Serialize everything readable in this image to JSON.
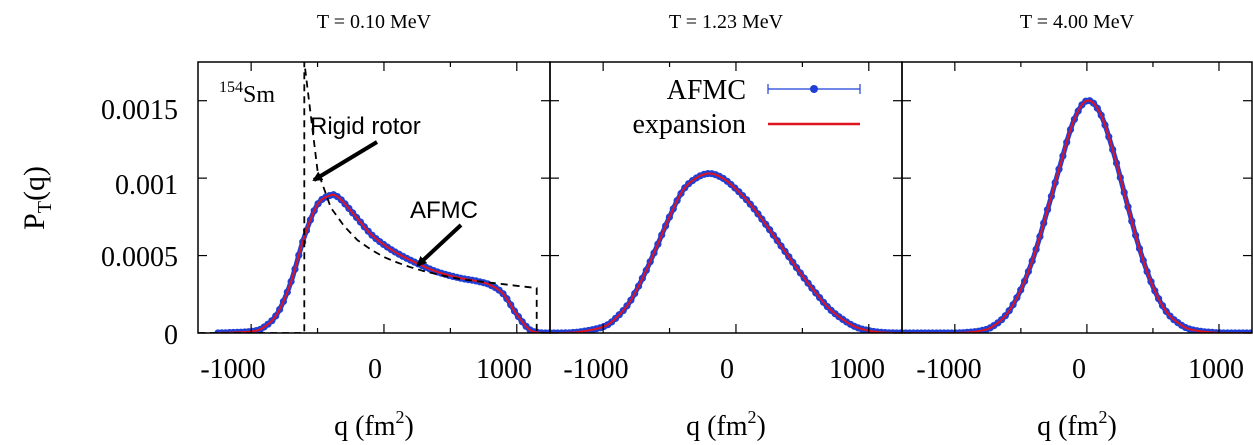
{
  "colors": {
    "afmc": "#1f3fd6",
    "expansion": "#e0141e",
    "rigid_rotor": "#000000",
    "axis": "#000000"
  },
  "figure": {
    "ylabel_main": "P",
    "ylabel_sub": "T",
    "ylabel_tail": "(q)",
    "xlabel_main": "q (fm",
    "xlabel_sup": "2",
    "xlabel_tail": ")",
    "nucleus_mass": "154",
    "nucleus_symbol": "Sm",
    "arrow_rigid_label": "Rigid rotor",
    "arrow_afmc_label": "AFMC",
    "legend": [
      {
        "label": "AFMC",
        "style": "points-with-errorbars",
        "color": "#1f3fd6"
      },
      {
        "label": "expansion",
        "style": "line",
        "color": "#e0141e"
      }
    ]
  },
  "chart_data": [
    {
      "type": "line",
      "title": "T = 0.10 MeV",
      "xlim": [
        -1400,
        1250
      ],
      "ylim": [
        0,
        0.00175
      ],
      "xticks": [
        -1000,
        0,
        1000
      ],
      "xtick_labels": [
        "-1000",
        "0",
        "1000"
      ],
      "yticks": [
        0,
        0.0005,
        0.001,
        0.0015
      ],
      "ytick_labels": [
        "0",
        "0.0005",
        "0.001",
        "0.0015"
      ],
      "series": [
        {
          "name": "AFMC",
          "kind": "points",
          "x": [
            -1250,
            -1000,
            -900,
            -800,
            -700,
            -600,
            -500,
            -400,
            -350,
            -300,
            -200,
            -100,
            0,
            100,
            200,
            300,
            400,
            500,
            600,
            700,
            800,
            900,
            1000,
            1100,
            1200,
            1250
          ],
          "y": [
            0,
            1e-05,
            4e-05,
            0.00013,
            0.00033,
            0.00062,
            0.00083,
            0.00089,
            0.00088,
            0.00084,
            0.00074,
            0.00064,
            0.00057,
            0.000515,
            0.00047,
            0.00043,
            0.000395,
            0.00037,
            0.00035,
            0.000335,
            0.00031,
            0.00025,
            0.00012,
            2e-05,
            0,
            0
          ]
        },
        {
          "name": "expansion",
          "kind": "line",
          "x": [
            -1250,
            -1000,
            -900,
            -800,
            -700,
            -600,
            -500,
            -400,
            -350,
            -300,
            -200,
            -100,
            0,
            100,
            200,
            300,
            400,
            500,
            600,
            700,
            800,
            900,
            1000,
            1100,
            1200,
            1250
          ],
          "y": [
            0,
            1e-05,
            4e-05,
            0.00013,
            0.00033,
            0.00062,
            0.00083,
            0.00089,
            0.00088,
            0.00084,
            0.00074,
            0.00064,
            0.00057,
            0.000515,
            0.00047,
            0.00043,
            0.000395,
            0.00037,
            0.00035,
            0.000335,
            0.00031,
            0.00025,
            0.00012,
            2e-05,
            0,
            0
          ]
        },
        {
          "name": "Rigid rotor",
          "kind": "dashed",
          "x": [
            -1400,
            -600,
            -600,
            -550,
            -500,
            -400,
            -300,
            -200,
            -100,
            0,
            100,
            200,
            300,
            400,
            500,
            600,
            700,
            800,
            900,
            1000,
            1100,
            1150,
            1150,
            1250
          ],
          "y": [
            0,
            0,
            0.00175,
            0.0014,
            0.00105,
            0.00081,
            0.00069,
            0.0006,
            0.00054,
            0.00049,
            0.000455,
            0.000425,
            0.0004,
            0.00038,
            0.00036,
            0.000345,
            0.000335,
            0.000325,
            0.000315,
            0.000305,
            0.000295,
            0.00029,
            0,
            0
          ]
        }
      ]
    },
    {
      "type": "line",
      "title": "T = 1.23 MeV",
      "xlim": [
        -1400,
        1250
      ],
      "ylim": [
        0,
        0.00175
      ],
      "xticks": [
        -1000,
        0,
        1000
      ],
      "xtick_labels": [
        "-1000",
        "0",
        "1000"
      ],
      "yticks": [
        0,
        0.0005,
        0.001,
        0.0015
      ],
      "series": [
        {
          "name": "AFMC",
          "kind": "points",
          "x": [
            -1400,
            -1200,
            -1000,
            -900,
            -800,
            -700,
            -600,
            -500,
            -400,
            -300,
            -200,
            -100,
            0,
            100,
            200,
            300,
            400,
            500,
            600,
            700,
            800,
            900,
            1000,
            1100,
            1200,
            1250
          ],
          "y": [
            0,
            5e-06,
            4e-05,
            0.0001,
            0.0002,
            0.00036,
            0.00055,
            0.00075,
            0.00092,
            0.001,
            0.00103,
            0.001,
            0.00093,
            0.00084,
            0.00073,
            0.00061,
            0.00049,
            0.00037,
            0.00026,
            0.00016,
            9e-05,
            4e-05,
            1.5e-05,
            4e-06,
            0,
            0
          ]
        },
        {
          "name": "expansion",
          "kind": "line",
          "x": [
            -1400,
            -1200,
            -1000,
            -900,
            -800,
            -700,
            -600,
            -500,
            -400,
            -300,
            -200,
            -100,
            0,
            100,
            200,
            300,
            400,
            500,
            600,
            700,
            800,
            900,
            1000,
            1100,
            1200,
            1250
          ],
          "y": [
            0,
            5e-06,
            4e-05,
            0.0001,
            0.0002,
            0.00036,
            0.00055,
            0.00075,
            0.00092,
            0.001,
            0.00103,
            0.001,
            0.00093,
            0.00084,
            0.00073,
            0.00061,
            0.00049,
            0.00037,
            0.00026,
            0.00016,
            9e-05,
            4e-05,
            1.5e-05,
            4e-06,
            0,
            0
          ]
        }
      ]
    },
    {
      "type": "line",
      "title": "T = 4.00 MeV",
      "xlim": [
        -1400,
        1250
      ],
      "ylim": [
        0,
        0.00175
      ],
      "xticks": [
        -1000,
        0,
        1000
      ],
      "xtick_labels": [
        "-1000",
        "0",
        "1000"
      ],
      "yticks": [
        0,
        0.0005,
        0.001,
        0.0015
      ],
      "series": [
        {
          "name": "AFMC",
          "kind": "points",
          "x": [
            -1400,
            -1000,
            -800,
            -700,
            -600,
            -500,
            -400,
            -300,
            -200,
            -100,
            0,
            100,
            200,
            300,
            400,
            500,
            600,
            700,
            800,
            1000,
            1250
          ],
          "y": [
            0,
            0,
            1.5e-05,
            5e-05,
            0.00013,
            0.00028,
            0.0005,
            0.00079,
            0.00109,
            0.00137,
            0.0015,
            0.00142,
            0.00117,
            0.00085,
            0.00054,
            0.0003,
            0.00014,
            6e-05,
            2e-05,
            1e-06,
            0
          ]
        },
        {
          "name": "expansion",
          "kind": "line",
          "x": [
            -1400,
            -1000,
            -800,
            -700,
            -600,
            -500,
            -400,
            -300,
            -200,
            -100,
            0,
            100,
            200,
            300,
            400,
            500,
            600,
            700,
            800,
            1000,
            1250
          ],
          "y": [
            0,
            0,
            1.5e-05,
            5e-05,
            0.00013,
            0.00028,
            0.0005,
            0.00079,
            0.00109,
            0.00137,
            0.0015,
            0.00142,
            0.00117,
            0.00085,
            0.00054,
            0.0003,
            0.00014,
            6e-05,
            2e-05,
            1e-06,
            0
          ]
        }
      ]
    }
  ]
}
